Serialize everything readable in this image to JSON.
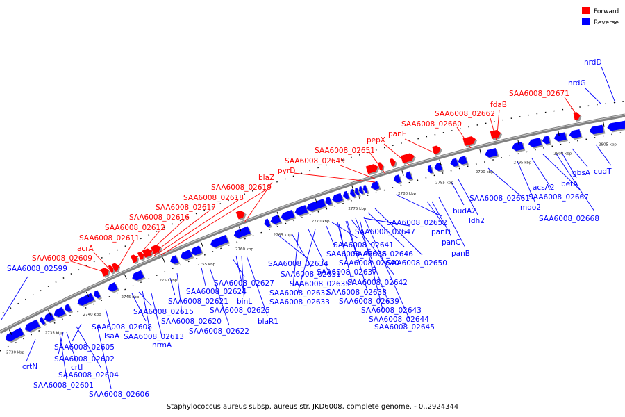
{
  "caption": "Staphylococcus aureus subsp. aureus str. JKD6008, complete genome. - 0..2924344",
  "legend": [
    {
      "label": "Forward",
      "color": "#ff0000"
    },
    {
      "label": "Reverse",
      "color": "#0000ff"
    }
  ],
  "colors": {
    "forward": "#ff0000",
    "reverse": "#0000ff",
    "backbone": "#808080"
  },
  "ticks": [
    "2730 kbp",
    "2735 kbp",
    "2740 kbp",
    "2745 kbp",
    "2750 kbp",
    "2755 kbp",
    "2760 kbp",
    "2765 kbp",
    "2770 kbp",
    "2775 kbp",
    "2780 kbp",
    "2785 kbp",
    "2790 kbp",
    "2795 kbp",
    "2800 kbp",
    "2805 kbp"
  ],
  "forward_labels": [
    "SAA6008_02609",
    "acrA",
    "SAA6008_02611",
    "SAA6008_02612",
    "SAA6008_02616",
    "SAA6008_02617",
    "SAA6008_02618",
    "SAA6008_02619",
    "blaZ",
    "pyrD",
    "SAA6008_02649",
    "SAA6008_02651",
    "pepX",
    "panE",
    "SAA6008_02660",
    "SAA6008_02662",
    "fdaB",
    "SAA6008_02671"
  ],
  "reverse_labels": [
    "SAA6008_02599",
    "crtN",
    "SAA6008_02602",
    "crtI",
    "SAA6008_02601",
    "SAA6008_02604",
    "SAA6008_02605",
    "SAA6008_02606",
    "isaA",
    "SAA6008_02608",
    "SAA6008_02613",
    "nrmA",
    "SAA6008_02615",
    "SAA6008_02621",
    "SAA6008_02620",
    "SAA6008_02624",
    "SAA6008_02622",
    "SAA6008_02627",
    "binL",
    "SAA6008_02625",
    "blaR1",
    "SAA6008_02631",
    "SAA6008_02634",
    "SAA6008_02632",
    "SAA6008_02635",
    "SAA6008_02633",
    "SAA6008_02636",
    "SAA6008_02637",
    "SAA6008_02641",
    "SAA6008_02640",
    "SAA6008_02638",
    "SAA6008_02639",
    "SAA6008_02642",
    "SAA6008_02643",
    "SAA6008_02647",
    "SAA6008_02646",
    "SAA6008_02644",
    "SAA6008_02645",
    "SAA6008_02650",
    "SAA6008_02652",
    "panD",
    "panC",
    "panB",
    "budA2",
    "ldh2",
    "SAA6008_02661",
    "mqo2",
    "acsA2",
    "SAA6008_02667",
    "SAA6008_02668",
    "betA",
    "gbsA",
    "cudT",
    "nrdG",
    "nrdD"
  ]
}
